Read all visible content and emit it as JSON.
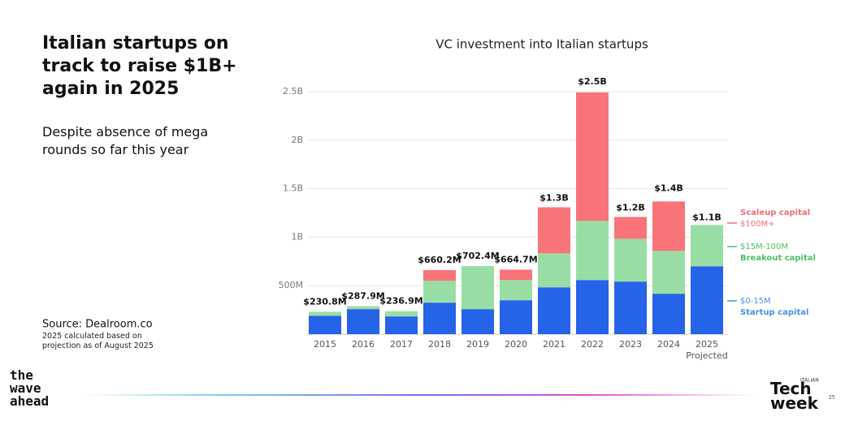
{
  "header": {
    "title": "Italian startups on track to raise $1B+ again in 2025",
    "subtitle": "Despite absence of mega rounds so far this year"
  },
  "source": {
    "text": "Source:  Dealroom.co",
    "note": "2025 calculated based on projection as of August 2025"
  },
  "logos": {
    "left": "the wave ahead",
    "right_small": "ITALIAN",
    "right_main": "Tech week",
    "right_year": "25"
  },
  "chart_data": {
    "type": "stacked-bar",
    "title": "VC investment into Italian startups",
    "categories": [
      "2015",
      "2016",
      "2017",
      "2018",
      "2019",
      "2020",
      "2021",
      "2022",
      "2023",
      "2024",
      "2025"
    ],
    "x_annotation": "Projected",
    "series": [
      {
        "name": "$0-15M",
        "description": "Startup capital",
        "color": "#2563e8",
        "label_color": "#4a8fe8",
        "values": [
          190,
          258,
          183,
          325,
          258,
          350,
          483,
          558,
          542,
          417,
          700
        ]
      },
      {
        "name": "$15M-100M",
        "description": "Breakout capital",
        "color": "#98dea4",
        "label_color": "#4fbf62",
        "values": [
          41,
          30,
          54,
          225,
          444,
          208,
          350,
          609,
          441,
          441,
          425
        ]
      },
      {
        "name": "$100M+",
        "description": "Scaleup capital",
        "color": "#f87479",
        "label_color": "#f26d73",
        "values": [
          0,
          0,
          0,
          110,
          0,
          107,
          475,
          1325,
          225,
          510,
          0
        ]
      }
    ],
    "totals": {
      "values": [
        230.8,
        287.9,
        236.9,
        660.2,
        702.4,
        664.7,
        1300,
        2500,
        1200,
        1400,
        1100
      ],
      "value_labels": [
        "$230.8M",
        "$287.9M",
        "$236.9M",
        "$660.2M",
        "$702.4M",
        "$664.7M",
        "$1.3B",
        "$2.5B",
        "$1.2B",
        "$1.4B",
        "$1.1B"
      ]
    },
    "ylim": [
      0,
      2500
    ],
    "yticks": [
      {
        "value": 500,
        "label": "500M"
      },
      {
        "value": 1000,
        "label": "1B"
      },
      {
        "value": 1500,
        "label": "1.5B"
      },
      {
        "value": 2000,
        "label": "2B"
      },
      {
        "value": 2500,
        "label": "2.5B"
      }
    ],
    "grid": true
  }
}
